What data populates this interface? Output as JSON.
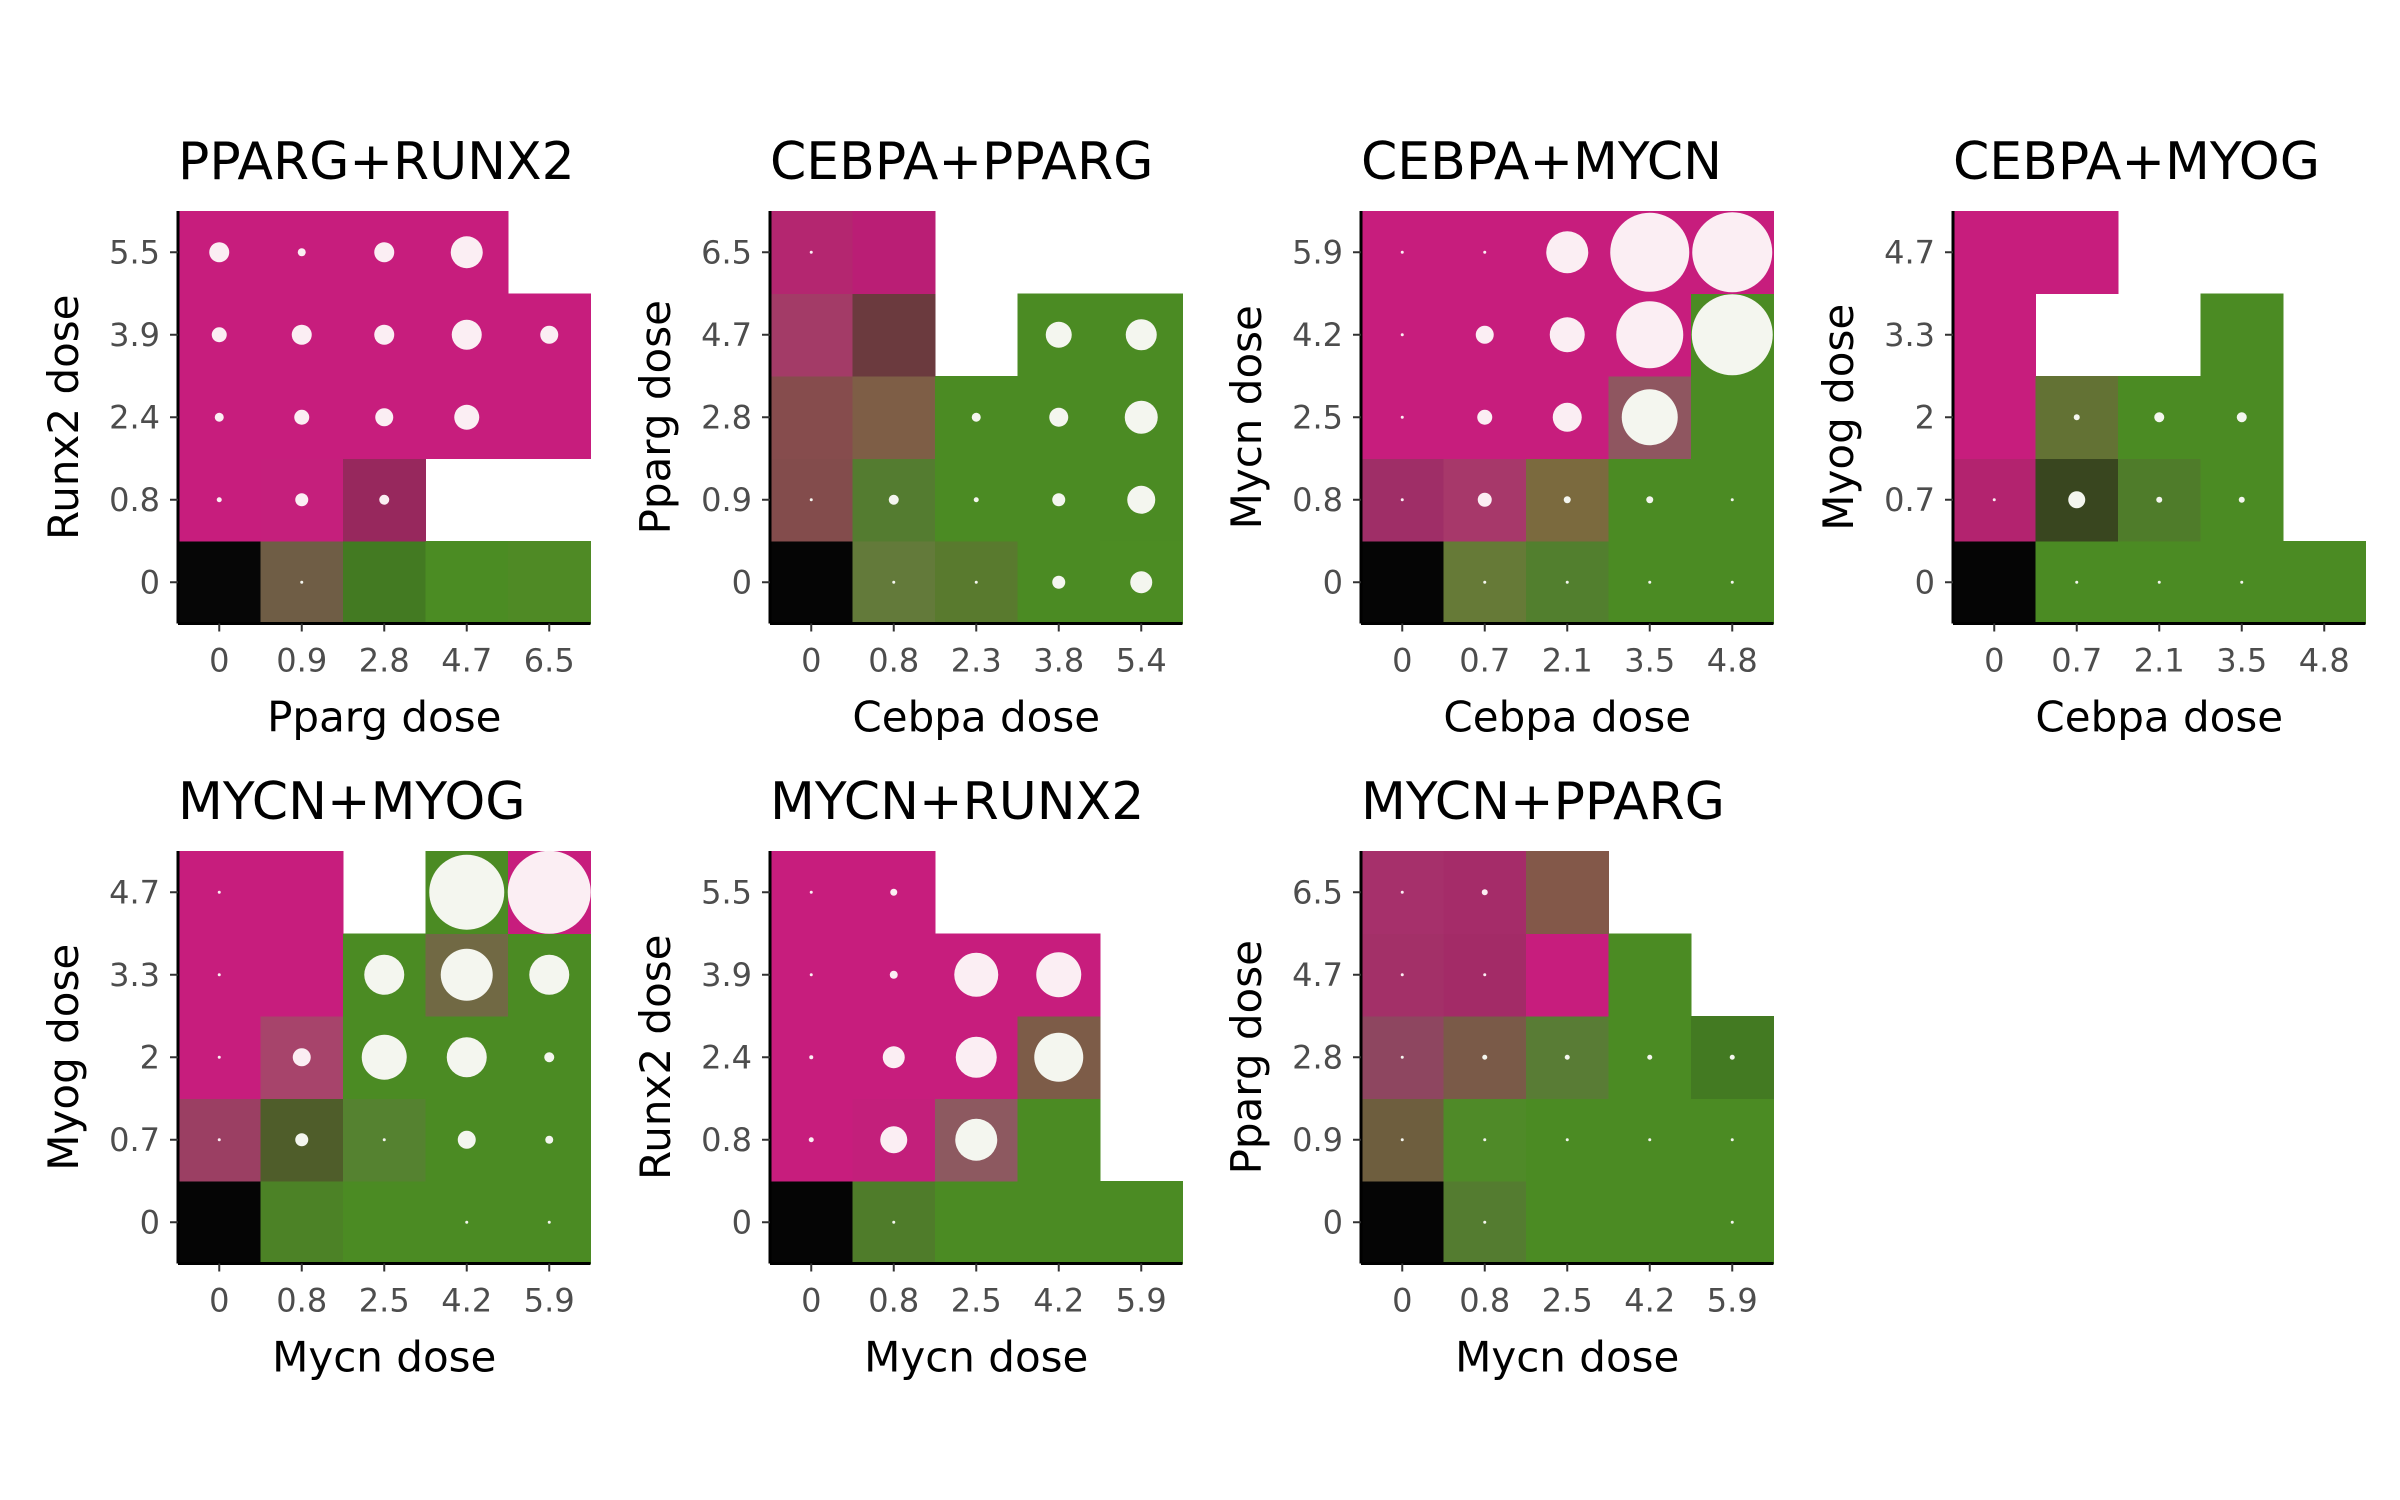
{
  "chart_data": [
    {
      "type": "heatmap",
      "title": "PPARG+RUNX2",
      "xlabel": "Pparg dose",
      "ylabel": "Runx2 dose",
      "x_ticks": [
        "0",
        "0.9",
        "2.8",
        "4.7",
        "6.5"
      ],
      "y_ticks": [
        "0",
        "0.8",
        "2.4",
        "3.9",
        "5.5"
      ],
      "cells": [
        [
          "#060606",
          "#6f5d45",
          "#437a22",
          "#4b8c23",
          "#4f8a25"
        ],
        [
          "#c71d7d",
          "#c51f7c",
          "#97285d",
          null,
          null
        ],
        [
          "#c71d7d",
          "#c71d7d",
          "#c71d7d",
          "#c71d7d",
          "#c71d7d"
        ],
        [
          "#c71d7d",
          "#c71d7d",
          "#c71d7d",
          "#c71d7d",
          "#c71d7d"
        ],
        [
          "#c71d7d",
          "#c71d7d",
          "#c71d7d",
          "#c71d7d",
          null
        ]
      ],
      "dots": [
        [
          0,
          0.2,
          0,
          0,
          0
        ],
        [
          0.5,
          1.3,
          1.0,
          null,
          null
        ],
        [
          0.9,
          1.5,
          1.8,
          2.5,
          null
        ],
        [
          1.5,
          2.0,
          2.0,
          3.0,
          1.8
        ],
        [
          2.0,
          0.8,
          2.0,
          3.2,
          null
        ]
      ]
    },
    {
      "type": "heatmap",
      "title": "CEBPA+PPARG",
      "xlabel": "Cebpa dose",
      "ylabel": "Pparg dose",
      "x_ticks": [
        "0",
        "0.8",
        "2.3",
        "3.8",
        "5.4"
      ],
      "y_ticks": [
        "0",
        "0.9",
        "2.8",
        "4.7",
        "6.5"
      ],
      "cells": [
        [
          "#050505",
          "#637a3a",
          "#597a2e",
          "#4b8b23",
          "#4c8c23"
        ],
        [
          "#834c4c",
          "#547c30",
          "#4b8b23",
          "#4b8b23",
          "#4b8b23"
        ],
        [
          "#864c4d",
          "#7e5e46",
          "#4b8b23",
          "#4b8b23",
          "#4b8b23"
        ],
        [
          "#a33b67",
          "#6b3a3e",
          null,
          "#4b8b23",
          "#4b8b23"
        ],
        [
          "#b42670",
          "#ba1e75",
          null,
          null,
          null
        ]
      ],
      "dots": [
        [
          0,
          0.2,
          0.2,
          1.3,
          2.2
        ],
        [
          0.2,
          1.0,
          0.5,
          1.3,
          2.8
        ],
        [
          0,
          0,
          0.9,
          1.9,
          3.3
        ],
        [
          0,
          0,
          null,
          2.6,
          3.1
        ],
        [
          0.2,
          0,
          null,
          null,
          null
        ]
      ]
    },
    {
      "type": "heatmap",
      "title": "CEBPA+MYCN",
      "xlabel": "Cebpa dose",
      "ylabel": "Mycn dose",
      "x_ticks": [
        "0",
        "0.7",
        "2.1",
        "3.5",
        "4.8"
      ],
      "y_ticks": [
        "0",
        "0.8",
        "2.5",
        "4.2",
        "5.9"
      ],
      "cells": [
        [
          "#050505",
          "#667a37",
          "#527f2e",
          "#4b8b23",
          "#4b8b23"
        ],
        [
          "#9f2e67",
          "#a7386a",
          "#7b6a3e",
          "#4b8b23",
          "#4b8b23"
        ],
        [
          "#c71d7d",
          "#c71d7d",
          "#c71d7d",
          "#8f5660",
          "#4b8b23"
        ],
        [
          "#c71d7d",
          "#c71d7d",
          "#c71d7d",
          "#c71d7d",
          "#4b8b23"
        ],
        [
          "#c71d7d",
          "#c71d7d",
          "#c71d7d",
          "#c71d7d",
          "#c71d7d"
        ]
      ],
      "dots": [
        [
          0,
          0.2,
          0.2,
          0.3,
          0.3
        ],
        [
          0.2,
          1.4,
          0.7,
          0.7,
          0.2
        ],
        [
          0.3,
          1.5,
          2.9,
          5.6,
          null
        ],
        [
          0.3,
          1.8,
          3.5,
          6.7,
          8.1
        ],
        [
          0.2,
          0.2,
          4.2,
          7.9,
          8.0
        ]
      ]
    },
    {
      "type": "heatmap",
      "title": "CEBPA+MYOG",
      "xlabel": "Cebpa dose",
      "ylabel": "Myog dose",
      "x_ticks": [
        "0",
        "0.7",
        "2.1",
        "3.5",
        "4.8"
      ],
      "y_ticks": [
        "0",
        "0.7",
        "2",
        "3.3",
        "4.7"
      ],
      "cells": [
        [
          "#050505",
          "#4b8b23",
          "#4b8b23",
          "#4b8b23",
          "#4b8b23"
        ],
        [
          "#b3236f",
          "#39461f",
          "#4f7c2a",
          "#4b8b23",
          null
        ],
        [
          "#c71d7d",
          "#637234",
          "#4b8b23",
          "#4b8b23",
          null
        ],
        [
          "#c71d7d",
          null,
          null,
          "#4b8b23",
          null
        ],
        [
          "#c71d7d",
          "#c71d7d",
          null,
          null,
          null
        ]
      ],
      "dots": [
        [
          0,
          0.2,
          0.2,
          0.2,
          0
        ],
        [
          0.2,
          1.7,
          0.6,
          0.6,
          null
        ],
        [
          0,
          0.6,
          1.0,
          1.0,
          null
        ],
        [
          0,
          null,
          null,
          0,
          null
        ],
        [
          0,
          0,
          null,
          null,
          null
        ]
      ]
    },
    {
      "type": "heatmap",
      "title": "MYCN+MYOG",
      "xlabel": "Mycn dose",
      "ylabel": "Myog dose",
      "x_ticks": [
        "0",
        "0.8",
        "2.5",
        "4.2",
        "5.9"
      ],
      "y_ticks": [
        "0",
        "0.7",
        "2",
        "3.3",
        "4.7"
      ],
      "cells": [
        [
          "#050505",
          "#4c8226",
          "#4b8b23",
          "#4b8b23",
          "#4b8b23"
        ],
        [
          "#9b3f63",
          "#4f5d2a",
          "#558230",
          "#4b8b23",
          "#4b8b23"
        ],
        [
          "#c71d7d",
          "#a7446b",
          "#4b8b23",
          "#4b8b23",
          "#4b8b23"
        ],
        [
          "#c71d7d",
          "#c71d7d",
          "#4b8b23",
          "#716944",
          "#4b8b23"
        ],
        [
          "#c71d7d",
          "#c71d7d",
          null,
          "#4b8b23",
          "#c71d7d"
        ]
      ],
      "dots": [
        [
          0,
          0,
          0,
          0.2,
          0.3
        ],
        [
          0.2,
          1.3,
          0.2,
          1.8,
          0.8
        ],
        [
          0.2,
          1.8,
          4.5,
          4.0,
          1.0
        ],
        [
          0.2,
          0,
          4.0,
          5.2,
          4.0
        ],
        [
          0.2,
          0,
          null,
          7.5,
          8.3
        ]
      ]
    },
    {
      "type": "heatmap",
      "title": "MYCN+RUNX2",
      "xlabel": "Mycn dose",
      "ylabel": "Runx2 dose",
      "x_ticks": [
        "0",
        "0.8",
        "2.5",
        "4.2",
        "5.9"
      ],
      "y_ticks": [
        "0",
        "0.8",
        "2.4",
        "3.9",
        "5.5"
      ],
      "cells": [
        [
          "#050505",
          "#4f7c2a",
          "#4b8b23",
          "#4b8b23",
          "#4b8b23"
        ],
        [
          "#c71d7d",
          "#c31f7b",
          "#8d5960",
          "#4b8b23",
          null
        ],
        [
          "#c71d7d",
          "#c71d7d",
          "#c71d7d",
          "#7d5c48",
          null
        ],
        [
          "#c71d7d",
          "#c71d7d",
          "#c71d7d",
          "#c71d7d",
          null
        ],
        [
          "#c71d7d",
          "#c71d7d",
          null,
          null,
          null
        ]
      ],
      "dots": [
        [
          0,
          0.2,
          0,
          0,
          0
        ],
        [
          0.5,
          2.7,
          4.2,
          null,
          null
        ],
        [
          0.4,
          2.2,
          4.1,
          4.9,
          null
        ],
        [
          0.3,
          0.8,
          4.4,
          4.5,
          null
        ],
        [
          0.2,
          0.7,
          null,
          null,
          null
        ]
      ]
    },
    {
      "type": "heatmap",
      "title": "MYCN+PPARG",
      "xlabel": "Mycn dose",
      "ylabel": "Pparg dose",
      "x_ticks": [
        "0",
        "0.8",
        "2.5",
        "4.2",
        "5.9"
      ],
      "y_ticks": [
        "0",
        "0.9",
        "2.8",
        "4.7",
        "6.5"
      ],
      "cells": [
        [
          "#050505",
          "#547c30",
          "#4b8b23",
          "#4b8b23",
          "#4b8b23"
        ],
        [
          "#6e5e3e",
          "#4f8a28",
          "#4b8b23",
          "#4b8b23",
          "#4b8b23"
        ],
        [
          "#8e4660",
          "#7a5a48",
          "#597c35",
          "#4b8b23",
          "#437a22"
        ],
        [
          "#a33068",
          "#a32b67",
          "#c71d7d",
          "#4b8b23",
          null
        ],
        [
          "#a6306b",
          "#a52c69",
          "#835849",
          null,
          null
        ]
      ],
      "dots": [
        [
          0,
          0.3,
          0,
          0,
          0.3
        ],
        [
          0.2,
          0.2,
          0.2,
          0.2,
          0.2
        ],
        [
          0.2,
          0.5,
          0.5,
          0.5,
          0.5
        ],
        [
          0.3,
          0.3,
          0,
          0,
          null
        ],
        [
          0.3,
          0.6,
          0,
          null,
          null
        ]
      ]
    }
  ]
}
